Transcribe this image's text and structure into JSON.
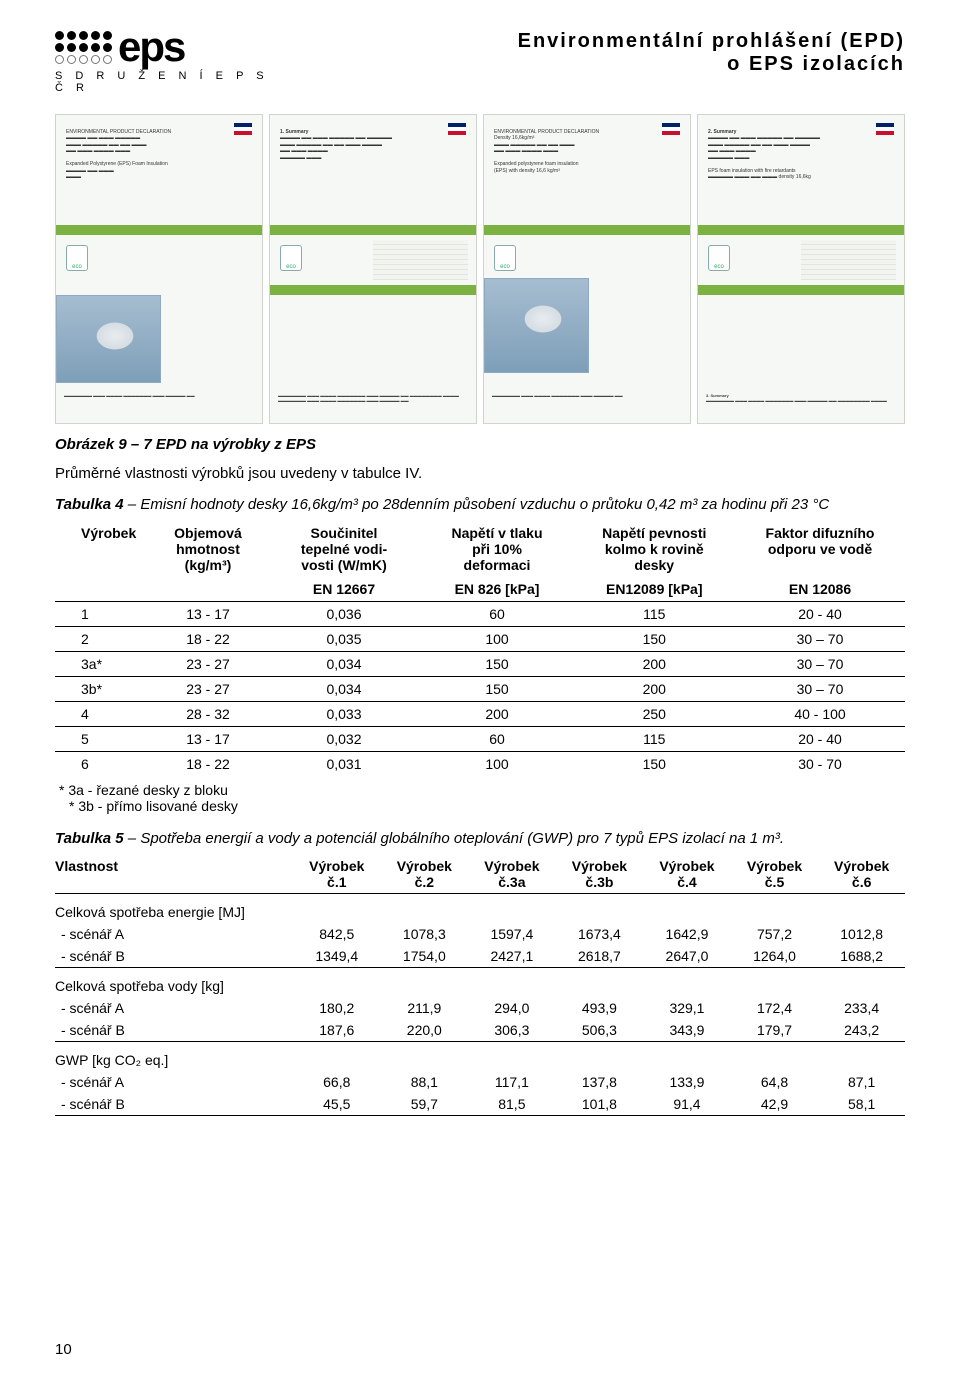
{
  "header": {
    "logo_sub": "S D R U Ž E N Í   E P S   Č R",
    "title_l1": "Environmentální prohlášení (EPD)",
    "title_l2": "o EPS izolacích"
  },
  "figure_caption": "Obrázek 9 – 7 EPD na výrobky z EPS",
  "lead_text": "Průměrné vlastnosti výrobků jsou uvedeny v tabulce IV.",
  "table4": {
    "caption_bold": "Tabulka 4",
    "caption_rest": " – Emisní hodnoty desky 16,6kg/m³ po 28denním působení vzduchu o průtoku 0,42 m³ za hodinu při 23 °C",
    "head": {
      "c0": "Výrobek",
      "c1_l1": "Objemová",
      "c1_l2": "hmotnost",
      "c1_l3": "(kg/m³)",
      "c2_l1": "Součinitel",
      "c2_l2": "tepelné vodi-",
      "c2_l3": "vosti (W/mK)",
      "c3_l1": "Napětí v tlaku",
      "c3_l2": "při 10%",
      "c3_l3": "deformaci",
      "c4_l1": "Napětí pevnosti",
      "c4_l2": "kolmo k rovině",
      "c4_l3": "desky",
      "c5_l1": "Faktor difuzního",
      "c5_l2": "odporu ve vodě",
      "en_c2": "EN 12667",
      "en_c3": "EN 826 [kPa]",
      "en_c4": "EN12089 [kPa]",
      "en_c5": "EN 12086"
    },
    "rows": [
      {
        "n": "1",
        "d": "13 - 17",
        "k": "0,036",
        "s10": "60",
        "sp": "115",
        "mu": "20 - 40"
      },
      {
        "n": "2",
        "d": "18 - 22",
        "k": "0,035",
        "s10": "100",
        "sp": "150",
        "mu": "30 – 70"
      },
      {
        "n": "3a*",
        "d": "23 - 27",
        "k": "0,034",
        "s10": "150",
        "sp": "200",
        "mu": "30 – 70"
      },
      {
        "n": "3b*",
        "d": "23 - 27",
        "k": "0,034",
        "s10": "150",
        "sp": "200",
        "mu": "30 – 70"
      },
      {
        "n": "4",
        "d": "28 - 32",
        "k": "0,033",
        "s10": "200",
        "sp": "250",
        "mu": "40 - 100"
      },
      {
        "n": "5",
        "d": "13 - 17",
        "k": "0,032",
        "s10": "60",
        "sp": "115",
        "mu": "20 - 40"
      },
      {
        "n": "6",
        "d": "18 - 22",
        "k": "0,031",
        "s10": "100",
        "sp": "150",
        "mu": "30 - 70"
      }
    ],
    "foot1": "* 3a - řezané desky z bloku",
    "foot2": "* 3b - přímo lisované desky"
  },
  "table5": {
    "caption_bold": "Tabulka 5",
    "caption_rest": " – Spotřeba energií a vody a potenciál globálního oteplování (GWP) pro 7 typů EPS izolací na 1 m³.",
    "head": {
      "prop": "Vlastnost",
      "p": "Výrobek",
      "c1": "č.1",
      "c2": "č.2",
      "c3a": "č.3a",
      "c3b": "č.3b",
      "c4": "č.4",
      "c5": "č.5",
      "c6": "č.6"
    },
    "groups": [
      {
        "label": "Celková spotřeba energie [MJ]",
        "rows": [
          {
            "l": "- scénář A",
            "v": [
              "842,5",
              "1078,3",
              "1597,4",
              "1673,4",
              "1642,9",
              "757,2",
              "1012,8"
            ]
          },
          {
            "l": "- scénář B",
            "v": [
              "1349,4",
              "1754,0",
              "2427,1",
              "2618,7",
              "2647,0",
              "1264,0",
              "1688,2"
            ]
          }
        ]
      },
      {
        "label": "Celková spotřeba vody [kg]",
        "rows": [
          {
            "l": "- scénář A",
            "v": [
              "180,2",
              "211,9",
              "294,0",
              "493,9",
              "329,1",
              "172,4",
              "233,4"
            ]
          },
          {
            "l": "- scénář B",
            "v": [
              "187,6",
              "220,0",
              "306,3",
              "506,3",
              "343,9",
              "179,7",
              "243,2"
            ]
          }
        ]
      },
      {
        "label": "GWP [kg CO₂ eq.]",
        "rows": [
          {
            "l": "- scénář A",
            "v": [
              "66,8",
              "88,1",
              "117,1",
              "137,8",
              "133,9",
              "64,8",
              "87,1"
            ]
          },
          {
            "l": "- scénář B",
            "v": [
              "45,5",
              "59,7",
              "81,5",
              "101,8",
              "91,4",
              "42,9",
              "58,1"
            ]
          }
        ]
      }
    ]
  },
  "page_number": "10"
}
